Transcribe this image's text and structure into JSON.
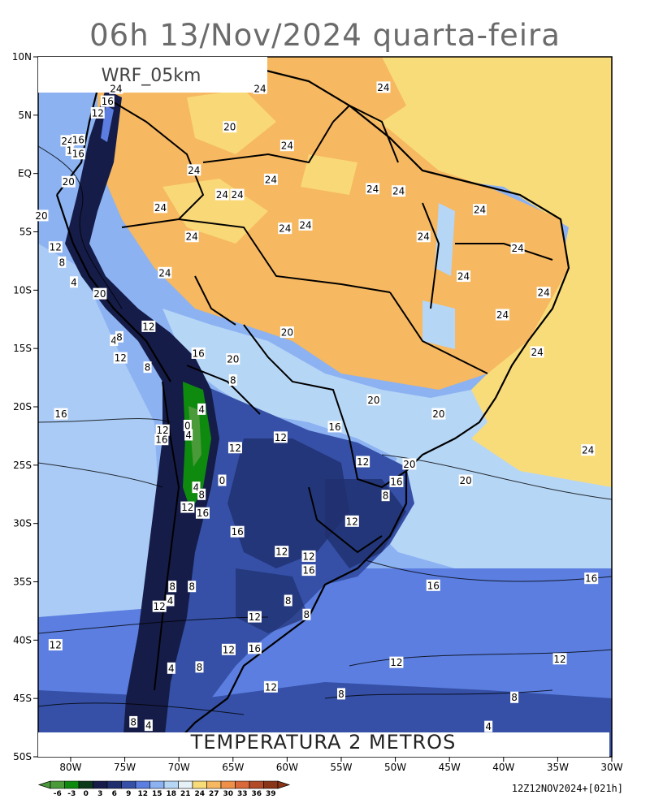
{
  "title": "06h 13/Nov/2024 quarta-feira",
  "model_label": "WRF_05km",
  "variable_label": "TEMPERATURA 2 METROS",
  "run_label": "12Z12NOV2024+[021h]",
  "axes": {
    "lat_labels": [
      "10N",
      "5N",
      "EQ",
      "5S",
      "10S",
      "15S",
      "20S",
      "25S",
      "30S",
      "35S",
      "40S",
      "45S",
      "50S"
    ],
    "lon_labels": [
      "80W",
      "75W",
      "70W",
      "65W",
      "60W",
      "55W",
      "50W",
      "45W",
      "40W",
      "35W",
      "30W"
    ]
  },
  "colorbar": {
    "values": [
      "-6",
      "-3",
      "0",
      "3",
      "6",
      "9",
      "12",
      "15",
      "18",
      "21",
      "24",
      "27",
      "30",
      "33",
      "36",
      "39"
    ],
    "colors": [
      "#4a9a3a",
      "#0e8a0e",
      "#0a3a1a",
      "#151c48",
      "#1f2f6e",
      "#3550a6",
      "#5b7ee0",
      "#8cb2f2",
      "#b6d6f6",
      "#e6f1f7",
      "#f9dc7a",
      "#f6b860",
      "#ef904a",
      "#d9693a",
      "#b24a28",
      "#8a3418"
    ]
  },
  "colors": {
    "ocean_warm": "#f9dc7a",
    "ocean_cool": "#8cb2f2",
    "land_hot": "#f6b860",
    "land_mild": "#b6d6f6",
    "land_cool": "#3550a6",
    "land_cold": "#1f2f6e",
    "andes": "#151c48",
    "green_cold": "#0e8a0e"
  },
  "contour_labels": [
    {
      "text": "24",
      "lon": -75.8,
      "lat": 7.3
    },
    {
      "text": "16",
      "lon": -76.6,
      "lat": 6.2
    },
    {
      "text": "12",
      "lon": -77.5,
      "lat": 5.2
    },
    {
      "text": "24",
      "lon": -80.3,
      "lat": 2.8
    },
    {
      "text": "16",
      "lon": -79.3,
      "lat": 2.9
    },
    {
      "text": "1",
      "lon": -80.1,
      "lat": 2.0
    },
    {
      "text": "16",
      "lon": -79.3,
      "lat": 1.7
    },
    {
      "text": "20",
      "lon": -80.2,
      "lat": -0.7
    },
    {
      "text": "20",
      "lon": -82.7,
      "lat": -3.6
    },
    {
      "text": "12",
      "lon": -81.4,
      "lat": -6.3
    },
    {
      "text": "8",
      "lon": -80.8,
      "lat": -7.6
    },
    {
      "text": "4",
      "lon": -79.7,
      "lat": -9.3
    },
    {
      "text": "20",
      "lon": -77.3,
      "lat": -10.3
    },
    {
      "text": "12",
      "lon": -72.8,
      "lat": -13.1
    },
    {
      "text": "4",
      "lon": -76.0,
      "lat": -14.3
    },
    {
      "text": "8",
      "lon": -75.5,
      "lat": -14.0
    },
    {
      "text": "12",
      "lon": -75.4,
      "lat": -15.8
    },
    {
      "text": "8",
      "lon": -72.9,
      "lat": -16.6
    },
    {
      "text": "16",
      "lon": -68.2,
      "lat": -15.4
    },
    {
      "text": "8",
      "lon": -65.0,
      "lat": -17.7
    },
    {
      "text": "4",
      "lon": -67.9,
      "lat": -20.2
    },
    {
      "text": "16",
      "lon": -80.9,
      "lat": -20.6
    },
    {
      "text": "12",
      "lon": -71.5,
      "lat": -22.0
    },
    {
      "text": "0",
      "lon": -69.2,
      "lat": -21.6
    },
    {
      "text": "4",
      "lon": -69.1,
      "lat": -22.4
    },
    {
      "text": "16",
      "lon": -71.6,
      "lat": -22.8
    },
    {
      "text": "12",
      "lon": -64.8,
      "lat": -23.5
    },
    {
      "text": "12",
      "lon": -60.6,
      "lat": -22.6
    },
    {
      "text": "16",
      "lon": -55.6,
      "lat": -21.7
    },
    {
      "text": "12",
      "lon": -53.0,
      "lat": -24.7
    },
    {
      "text": "20",
      "lon": -48.7,
      "lat": -24.9
    },
    {
      "text": "16",
      "lon": -49.9,
      "lat": -26.4
    },
    {
      "text": "8",
      "lon": -50.9,
      "lat": -27.6
    },
    {
      "text": "12",
      "lon": -54.0,
      "lat": -29.8
    },
    {
      "text": "20",
      "lon": -43.5,
      "lat": -26.3
    },
    {
      "text": "24",
      "lon": -32.2,
      "lat": -23.7
    },
    {
      "text": "0",
      "lon": -66.0,
      "lat": -26.3
    },
    {
      "text": "4",
      "lon": -68.4,
      "lat": -26.9
    },
    {
      "text": "8",
      "lon": -67.9,
      "lat": -27.5
    },
    {
      "text": "12",
      "lon": -69.2,
      "lat": -28.6
    },
    {
      "text": "16",
      "lon": -67.8,
      "lat": -29.1
    },
    {
      "text": "16",
      "lon": -64.6,
      "lat": -30.7
    },
    {
      "text": "12",
      "lon": -60.5,
      "lat": -32.4
    },
    {
      "text": "12",
      "lon": -58.0,
      "lat": -32.8
    },
    {
      "text": "16",
      "lon": -58.0,
      "lat": -34.0
    },
    {
      "text": "16",
      "lon": -46.5,
      "lat": -35.3
    },
    {
      "text": "16",
      "lon": -31.9,
      "lat": -34.7
    },
    {
      "text": "8",
      "lon": -70.6,
      "lat": -35.4
    },
    {
      "text": "8",
      "lon": -68.8,
      "lat": -35.4
    },
    {
      "text": "4",
      "lon": -70.8,
      "lat": -36.6
    },
    {
      "text": "12",
      "lon": -71.8,
      "lat": -37.1
    },
    {
      "text": "8",
      "lon": -59.9,
      "lat": -36.6
    },
    {
      "text": "8",
      "lon": -58.2,
      "lat": -37.8
    },
    {
      "text": "12",
      "lon": -63.0,
      "lat": -38.0
    },
    {
      "text": "12",
      "lon": -81.4,
      "lat": -40.4
    },
    {
      "text": "12",
      "lon": -65.4,
      "lat": -40.8
    },
    {
      "text": "16",
      "lon": -63.0,
      "lat": -40.7
    },
    {
      "text": "12",
      "lon": -49.9,
      "lat": -41.9
    },
    {
      "text": "12",
      "lon": -34.8,
      "lat": -41.6
    },
    {
      "text": "4",
      "lon": -70.7,
      "lat": -42.4
    },
    {
      "text": "8",
      "lon": -68.1,
      "lat": -42.3
    },
    {
      "text": "12",
      "lon": -61.5,
      "lat": -44.0
    },
    {
      "text": "8",
      "lon": -55.0,
      "lat": -44.6
    },
    {
      "text": "8",
      "lon": -39.0,
      "lat": -44.9
    },
    {
      "text": "8",
      "lon": -74.2,
      "lat": -47.0
    },
    {
      "text": "4",
      "lon": -72.8,
      "lat": -47.3
    },
    {
      "text": "4",
      "lon": -41.4,
      "lat": -47.4
    },
    {
      "text": "24",
      "lon": -62.5,
      "lat": 7.3
    },
    {
      "text": "20",
      "lon": -65.3,
      "lat": 4.0
    },
    {
      "text": "24",
      "lon": -51.1,
      "lat": 7.4
    },
    {
      "text": "24",
      "lon": -60.0,
      "lat": 2.4
    },
    {
      "text": "24",
      "lon": -68.6,
      "lat": 0.3
    },
    {
      "text": "24",
      "lon": -61.5,
      "lat": -0.5
    },
    {
      "text": "24",
      "lon": -66.0,
      "lat": -1.8
    },
    {
      "text": "24",
      "lon": -71.7,
      "lat": -2.9
    },
    {
      "text": "24",
      "lon": -64.6,
      "lat": -1.8
    },
    {
      "text": "24",
      "lon": -60.2,
      "lat": -4.7
    },
    {
      "text": "24",
      "lon": -58.3,
      "lat": -4.4
    },
    {
      "text": "24",
      "lon": -68.8,
      "lat": -5.4
    },
    {
      "text": "24",
      "lon": -52.1,
      "lat": -1.3
    },
    {
      "text": "24",
      "lon": -49.7,
      "lat": -1.5
    },
    {
      "text": "24",
      "lon": -47.4,
      "lat": -5.4
    },
    {
      "text": "24",
      "lon": -42.2,
      "lat": -3.1
    },
    {
      "text": "24",
      "lon": -38.7,
      "lat": -6.4
    },
    {
      "text": "24",
      "lon": -71.3,
      "lat": -8.5
    },
    {
      "text": "24",
      "lon": -43.7,
      "lat": -8.8
    },
    {
      "text": "24",
      "lon": -36.3,
      "lat": -10.2
    },
    {
      "text": "24",
      "lon": -40.1,
      "lat": -12.1
    },
    {
      "text": "24",
      "lon": -36.9,
      "lat": -15.3
    },
    {
      "text": "20",
      "lon": -60.0,
      "lat": -13.6
    },
    {
      "text": "20",
      "lon": -65.0,
      "lat": -15.9
    },
    {
      "text": "20",
      "lon": -52.0,
      "lat": -19.4
    },
    {
      "text": "20",
      "lon": -46.0,
      "lat": -20.6
    }
  ]
}
